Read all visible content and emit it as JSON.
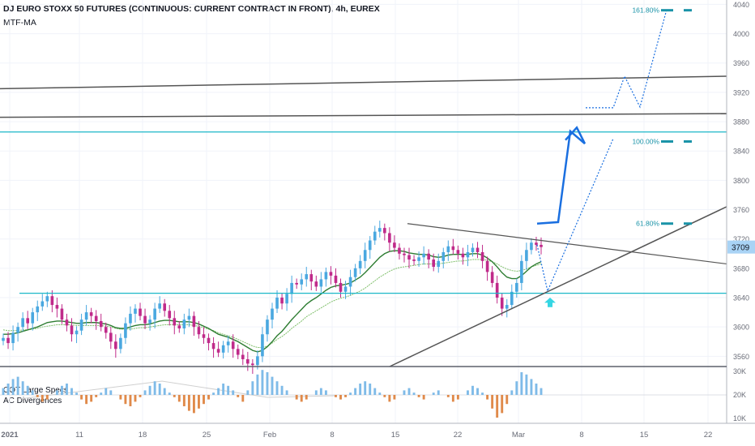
{
  "header": {
    "title": "DJ EURO STOXX 50 FUTURES (CONTINUOUS: CURRENT CONTRACT IN FRONT), 4h, EUREX",
    "study": "MTF-MA"
  },
  "indicator": {
    "name1": "COT Large Specs",
    "name2": "AC Divergences"
  },
  "price_label": "3709",
  "colors": {
    "up": "#4aa8e0",
    "down": "#c02a8a",
    "ma_dark": "#2e7d32",
    "ma_light": "#7fbf6a",
    "cyan": "#1bb7c8",
    "blue": "#1a6fe0",
    "trend": "#555555",
    "osc_pos": "#7fbbe8",
    "osc_neg": "#e08a4a"
  },
  "chart_data": {
    "type": "candlestick",
    "y_axis": {
      "ticks": [
        "3560",
        "3600",
        "3640",
        "3680",
        "3720",
        "3760",
        "3800",
        "3840",
        "3880",
        "3920",
        "3960",
        "4000",
        "4040"
      ],
      "range": [
        3546,
        4046
      ]
    },
    "x_axis": {
      "ticks": [
        "2021",
        "11",
        "18",
        "25",
        "Feb",
        "8",
        "15",
        "22",
        "Mar",
        "8",
        "15",
        "22"
      ]
    },
    "closes": [
      3585,
      3578,
      3592,
      3600,
      3612,
      3605,
      3620,
      3628,
      3635,
      3642,
      3630,
      3625,
      3610,
      3602,
      3590,
      3595,
      3610,
      3620,
      3615,
      3608,
      3600,
      3592,
      3580,
      3570,
      3585,
      3605,
      3618,
      3625,
      3615,
      3605,
      3610,
      3625,
      3632,
      3622,
      3612,
      3602,
      3598,
      3610,
      3615,
      3600,
      3590,
      3585,
      3578,
      3570,
      3565,
      3575,
      3580,
      3570,
      3562,
      3556,
      3550,
      3548,
      3560,
      3590,
      3610,
      3625,
      3640,
      3632,
      3645,
      3660,
      3658,
      3665,
      3672,
      3662,
      3655,
      3665,
      3675,
      3670,
      3660,
      3648,
      3655,
      3668,
      3680,
      3690,
      3705,
      3718,
      3730,
      3735,
      3728,
      3715,
      3708,
      3700,
      3698,
      3692,
      3690,
      3695,
      3700,
      3692,
      3682,
      3690,
      3702,
      3710,
      3705,
      3700,
      3695,
      3702,
      3708,
      3702,
      3690,
      3675,
      3660,
      3640,
      3625,
      3630,
      3648,
      3660,
      3690,
      3705,
      3715,
      3712,
      3709
    ],
    "ma_fast": [
      3590,
      3590,
      3591,
      3592,
      3594,
      3596,
      3598,
      3600,
      3603,
      3606,
      3607,
      3608,
      3608,
      3607,
      3606,
      3605,
      3605,
      3606,
      3606,
      3606,
      3605,
      3604,
      3602,
      3599,
      3598,
      3598,
      3600,
      3602,
      3603,
      3603,
      3604,
      3606,
      3608,
      3609,
      3609,
      3608,
      3607,
      3607,
      3607,
      3606,
      3604,
      3601,
      3598,
      3594,
      3590,
      3588,
      3586,
      3583,
      3580,
      3576,
      3572,
      3568,
      3566,
      3568,
      3573,
      3580,
      3588,
      3594,
      3602,
      3610,
      3617,
      3624,
      3631,
      3636,
      3640,
      3645,
      3650,
      3654,
      3656,
      3657,
      3658,
      3660,
      3664,
      3668,
      3674,
      3681,
      3688,
      3695,
      3700,
      3703,
      3704,
      3704,
      3703,
      3701,
      3700,
      3699,
      3699,
      3698,
      3696,
      3695,
      3696,
      3698,
      3699,
      3699,
      3699,
      3699,
      3700,
      3700,
      3698,
      3694,
      3689,
      3682,
      3674,
      3668,
      3666,
      3666,
      3670,
      3676,
      3682,
      3686,
      3689
    ],
    "ma_slow": [
      3596,
      3595,
      3595,
      3595,
      3596,
      3596,
      3597,
      3598,
      3600,
      3601,
      3602,
      3603,
      3603,
      3603,
      3603,
      3602,
      3602,
      3602,
      3602,
      3602,
      3602,
      3601,
      3600,
      3598,
      3597,
      3597,
      3597,
      3598,
      3599,
      3599,
      3600,
      3601,
      3602,
      3603,
      3603,
      3603,
      3603,
      3603,
      3603,
      3602,
      3601,
      3599,
      3597,
      3595,
      3592,
      3590,
      3588,
      3586,
      3583,
      3580,
      3577,
      3574,
      3572,
      3572,
      3574,
      3578,
      3583,
      3587,
      3592,
      3598,
      3603,
      3608,
      3614,
      3618,
      3622,
      3626,
      3630,
      3634,
      3637,
      3639,
      3641,
      3643,
      3646,
      3649,
      3653,
      3658,
      3663,
      3668,
      3672,
      3676,
      3679,
      3681,
      3682,
      3683,
      3684,
      3685,
      3686,
      3686,
      3686,
      3686,
      3687,
      3688,
      3689,
      3690,
      3690,
      3691,
      3692,
      3692,
      3692,
      3691,
      3689,
      3686,
      3682,
      3679,
      3677,
      3676,
      3677,
      3679,
      3682,
      3684,
      3686
    ],
    "oscillator": [
      3,
      5,
      7,
      8,
      6,
      4,
      2,
      -1,
      -3,
      -2,
      0,
      2,
      4,
      5,
      3,
      1,
      -2,
      -4,
      -3,
      -1,
      1,
      3,
      2,
      0,
      -2,
      -4,
      -5,
      -3,
      -1,
      2,
      4,
      6,
      5,
      3,
      1,
      -1,
      -3,
      -5,
      -7,
      -8,
      -6,
      -4,
      -2,
      1,
      3,
      5,
      4,
      2,
      -1,
      -3,
      2,
      6,
      9,
      11,
      10,
      8,
      6,
      4,
      2,
      0,
      -2,
      -3,
      -2,
      0,
      2,
      3,
      2,
      0,
      -1,
      -2,
      -1,
      1,
      3,
      5,
      6,
      5,
      3,
      1,
      -1,
      -3,
      -2,
      0,
      2,
      3,
      1,
      -1,
      -2,
      0,
      1,
      2,
      0,
      -1,
      -3,
      -2,
      0,
      2,
      4,
      3,
      1,
      -2,
      -6,
      -10,
      -8,
      -4,
      2,
      6,
      10,
      9,
      7,
      5,
      3
    ],
    "osc_axis": [
      "30K",
      "20K",
      "10K"
    ],
    "levels": [
      {
        "label": "161.80%",
        "price": 4032
      },
      {
        "label": "100.00%",
        "price": 3853
      },
      {
        "label": "61.80%",
        "price": 3741
      }
    ]
  }
}
